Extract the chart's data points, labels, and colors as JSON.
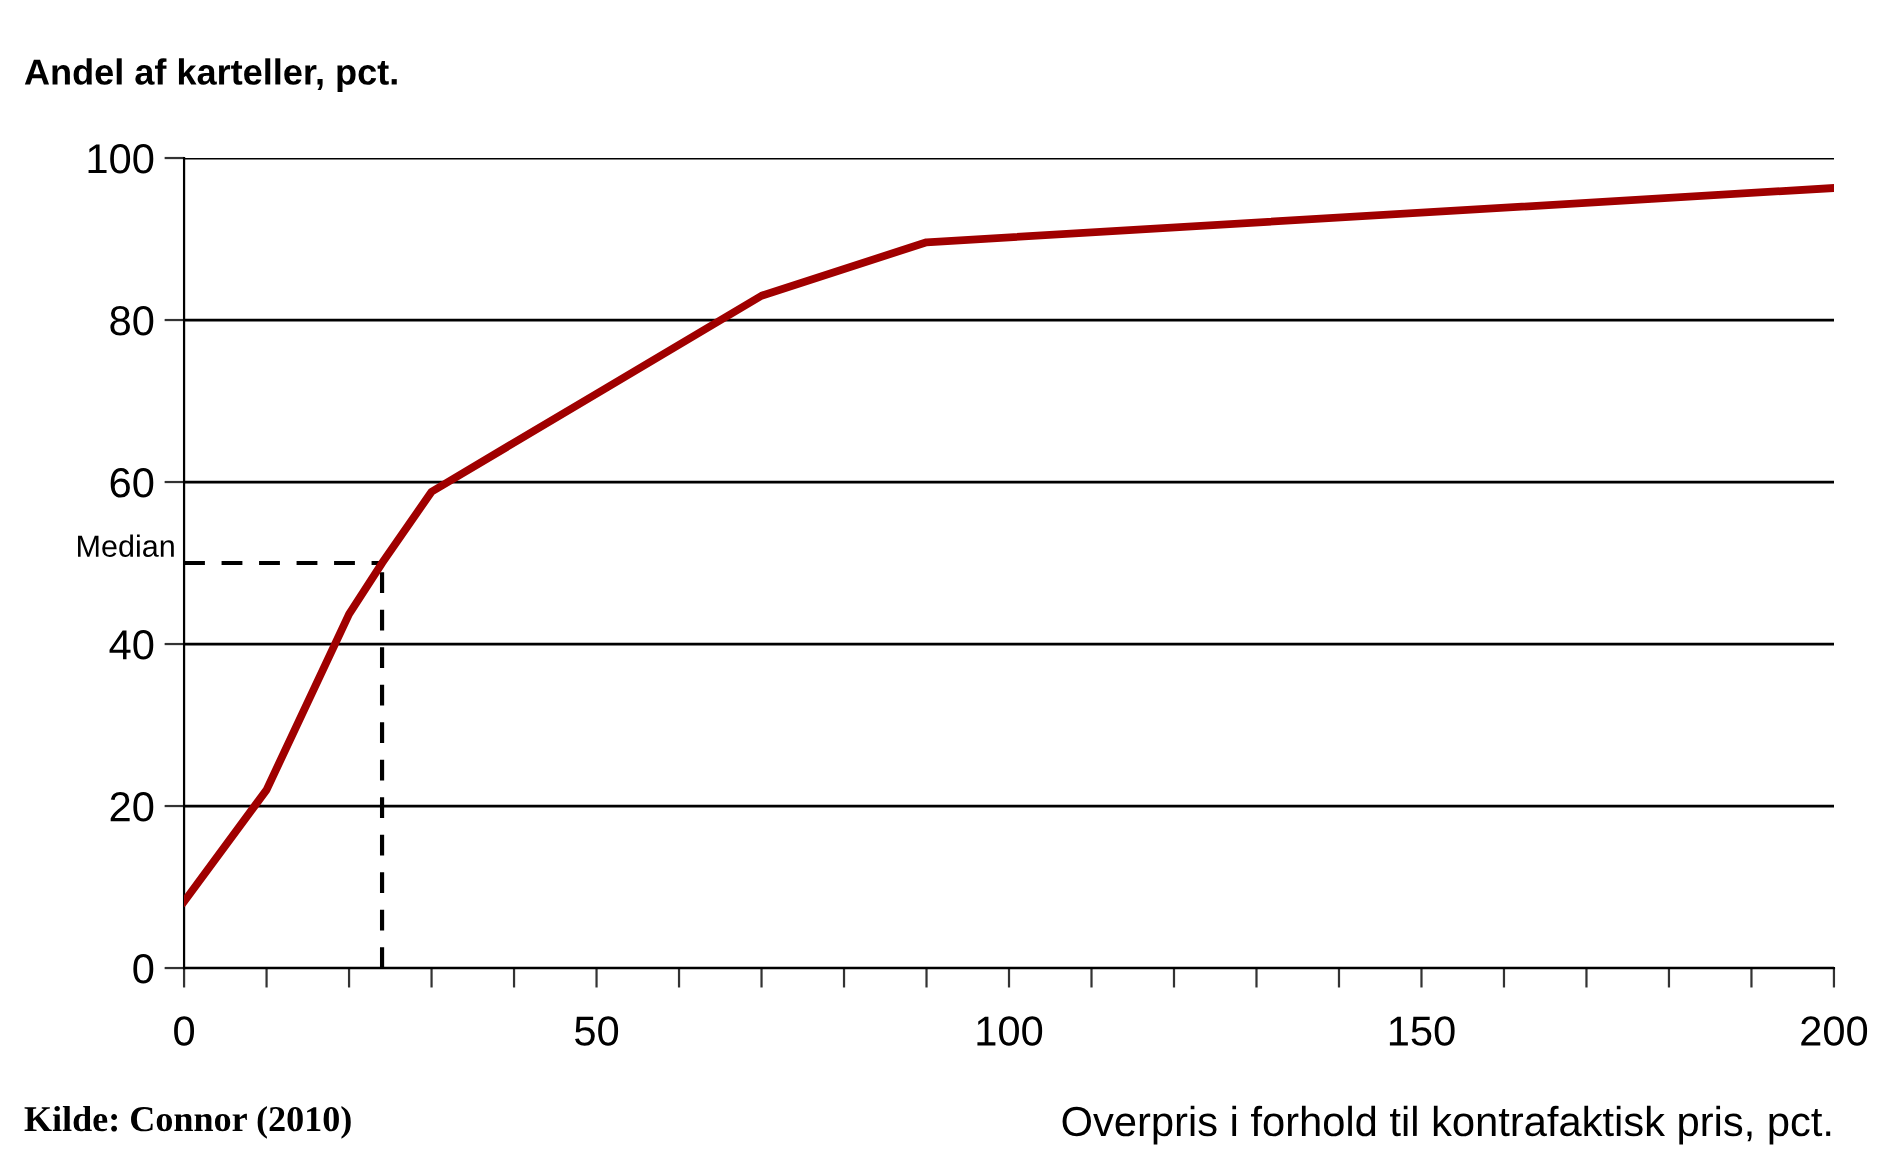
{
  "chart_data": {
    "type": "line",
    "ylabel": "Andel af karteller, pct.",
    "xlabel": "Overpris i forhold til kontrafaktisk pris, pct.",
    "x": [
      0,
      10,
      20,
      24,
      30,
      50,
      70,
      90,
      200
    ],
    "series": [
      {
        "color": "#a00000",
        "values": [
          8.2,
          22,
          43.7,
          50,
          58.8,
          70.9,
          83,
          89.6,
          96.3
        ]
      }
    ],
    "ref_lines": [
      {
        "axis": "y",
        "value": 50,
        "label": "Median",
        "color": "#000000",
        "line_style": "dashed"
      },
      {
        "axis": "x",
        "value": 24,
        "color": "#000000",
        "line_style": "dashed"
      }
    ],
    "xlim": [
      0,
      200
    ],
    "xticks": [
      0,
      {
        "value": 10,
        "label": null
      },
      {
        "value": 20,
        "label": null
      },
      {
        "value": 30,
        "label": null
      },
      {
        "value": 40,
        "label": null
      },
      50,
      {
        "value": 60,
        "label": null
      },
      {
        "value": 70,
        "label": null
      },
      {
        "value": 80,
        "label": null
      },
      {
        "value": 90,
        "label": null
      },
      100,
      {
        "value": 110,
        "label": null
      },
      {
        "value": 120,
        "label": null
      },
      {
        "value": 130,
        "label": null
      },
      {
        "value": 140,
        "label": null
      },
      150,
      {
        "value": 160,
        "label": null
      },
      {
        "value": 170,
        "label": null
      },
      {
        "value": 180,
        "label": null
      },
      {
        "value": 190,
        "label": null
      },
      200
    ],
    "ylim": [
      0,
      100
    ],
    "yticks": [
      0,
      20,
      40,
      60,
      80,
      100
    ],
    "grid": "y",
    "marker": "none",
    "line_style": "solid",
    "annotations": [
      "Kilde: Connor (2010)"
    ]
  }
}
